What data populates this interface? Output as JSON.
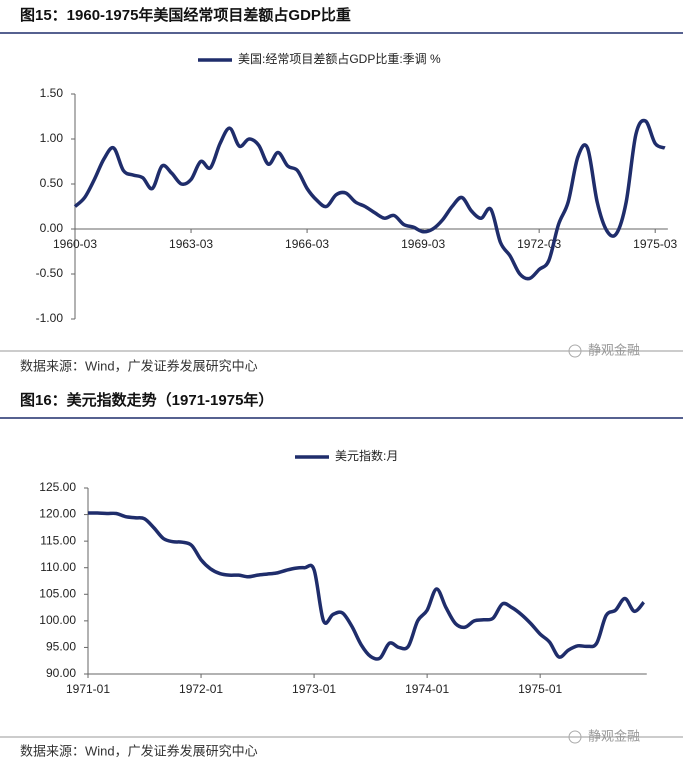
{
  "chart_data": [
    {
      "type": "line",
      "title": "图15：1960-1975年美国经常项目差额占GDP比重",
      "source": "数据来源：Wind，广发证券发展研究中心",
      "watermark": "静观金融",
      "categories": [
        "1960-03",
        null,
        null,
        null,
        null,
        null,
        null,
        null,
        null,
        null,
        null,
        null,
        "1963-03",
        null,
        null,
        null,
        null,
        null,
        null,
        null,
        null,
        null,
        null,
        null,
        "1966-03",
        null,
        null,
        null,
        null,
        null,
        null,
        null,
        null,
        null,
        null,
        null,
        "1969-03",
        null,
        null,
        null,
        null,
        null,
        null,
        null,
        null,
        null,
        null,
        null,
        "1972-03",
        null,
        null,
        null,
        null,
        null,
        null,
        null,
        null,
        null,
        null,
        null,
        "1975-03",
        null
      ],
      "series": [
        {
          "name": "美国:经常项目差额占GDP比重:季调 %",
          "color": "#1f2d6b",
          "values": [
            0.25,
            0.35,
            0.55,
            0.78,
            0.9,
            0.65,
            0.6,
            0.57,
            0.45,
            0.7,
            0.62,
            0.5,
            0.55,
            0.75,
            0.68,
            0.95,
            1.12,
            0.92,
            1.0,
            0.93,
            0.72,
            0.85,
            0.7,
            0.65,
            0.45,
            0.32,
            0.25,
            0.38,
            0.4,
            0.3,
            0.25,
            0.18,
            0.12,
            0.15,
            0.05,
            0.02,
            -0.03,
            0.0,
            0.1,
            0.25,
            0.35,
            0.2,
            0.12,
            0.22,
            -0.15,
            -0.3,
            -0.5,
            -0.55,
            -0.45,
            -0.35,
            0.05,
            0.3,
            0.8,
            0.9,
            0.3,
            -0.02,
            -0.05,
            0.3,
            1.05,
            1.2,
            0.95,
            0.9
          ]
        }
      ],
      "ylim": [
        -1,
        1.5
      ],
      "yticks": [
        {
          "value": -1,
          "label": "-1.00"
        },
        {
          "value": -0.5,
          "label": "-0.50"
        },
        {
          "value": 0,
          "label": "0.00"
        },
        {
          "value": 0.5,
          "label": "0.50"
        },
        {
          "value": 1,
          "label": "1.00"
        },
        {
          "value": 1.5,
          "label": "1.50"
        }
      ]
    },
    {
      "type": "line",
      "title": "图16：美元指数走势（1971-1975年）",
      "source": "数据来源：Wind，广发证券发展研究中心",
      "watermark": "静观金融",
      "categories": [
        "1971-01",
        null,
        null,
        null,
        null,
        null,
        null,
        null,
        null,
        null,
        null,
        null,
        "1972-01",
        null,
        null,
        null,
        null,
        null,
        null,
        null,
        null,
        null,
        null,
        null,
        "1973-01",
        null,
        null,
        null,
        null,
        null,
        null,
        null,
        null,
        null,
        null,
        null,
        "1974-01",
        null,
        null,
        null,
        null,
        null,
        null,
        null,
        null,
        null,
        null,
        null,
        "1975-01",
        null,
        null,
        null,
        null,
        null,
        null,
        null,
        null,
        null,
        null,
        null
      ],
      "series": [
        {
          "name": "美元指数:月",
          "color": "#1f2d6b",
          "values": [
            120.3,
            120.3,
            120.2,
            120.2,
            119.6,
            119.4,
            119.2,
            117.5,
            115.5,
            114.9,
            114.8,
            114.2,
            111.5,
            109.8,
            108.9,
            108.6,
            108.6,
            108.3,
            108.6,
            108.8,
            109.0,
            109.5,
            109.9,
            110.0,
            109.6,
            100.0,
            101.2,
            101.5,
            99.0,
            95.5,
            93.3,
            93.0,
            95.8,
            95.0,
            95.2,
            100.0,
            102.0,
            106.0,
            102.5,
            99.5,
            98.8,
            100.0,
            100.2,
            100.5,
            103.2,
            102.5,
            101.2,
            99.5,
            97.5,
            96.0,
            93.2,
            94.5,
            95.3,
            95.2,
            95.8,
            101.0,
            102.0,
            104.2,
            101.8,
            103.5
          ]
        }
      ],
      "ylim": [
        90,
        125
      ],
      "yticks": [
        {
          "value": 90,
          "label": "90.00"
        },
        {
          "value": 95,
          "label": "95.00"
        },
        {
          "value": 100,
          "label": "100.00"
        },
        {
          "value": 105,
          "label": "105.00"
        },
        {
          "value": 110,
          "label": "110.00"
        },
        {
          "value": 115,
          "label": "115.00"
        },
        {
          "value": 120,
          "label": "120.00"
        },
        {
          "value": 125,
          "label": "125.00"
        }
      ]
    }
  ]
}
